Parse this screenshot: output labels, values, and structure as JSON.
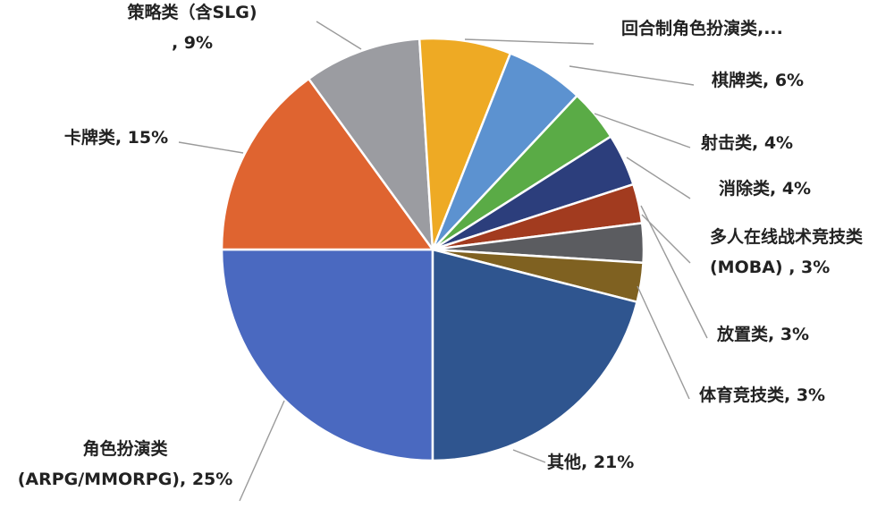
{
  "chart_data": {
    "type": "pie",
    "title": "",
    "slices": [
      {
        "key": "rpg",
        "label_lines": [
          "角色扮演类",
          "(ARPG/MMORPG), 25%"
        ],
        "value": 25,
        "color": "#4a69c0"
      },
      {
        "key": "card",
        "label_lines": [
          "卡牌类, 15%"
        ],
        "value": 15,
        "color": "#df6430"
      },
      {
        "key": "slg",
        "label_lines": [
          "策略类（含SLG)",
          ", 9%"
        ],
        "value": 9,
        "color": "#9b9ca1"
      },
      {
        "key": "turn",
        "label_lines": [
          "回合制角色扮演类,..."
        ],
        "value": 7,
        "color": "#eeaa24"
      },
      {
        "key": "chess",
        "label_lines": [
          "棋牌类, 6%"
        ],
        "value": 6,
        "color": "#5c92d0"
      },
      {
        "key": "shooter",
        "label_lines": [
          "射击类, 4%"
        ],
        "value": 4,
        "color": "#5aab46"
      },
      {
        "key": "match",
        "label_lines": [
          "消除类, 4%"
        ],
        "value": 4,
        "color": "#2c3e7c"
      },
      {
        "key": "idle",
        "label_lines": [
          "放置类, 3%"
        ],
        "value": 3,
        "color": "#a23b1f"
      },
      {
        "key": "moba",
        "label_lines": [
          "多人在线战术竞技类",
          "(MOBA) , 3%"
        ],
        "value": 3,
        "color": "#5b5c60"
      },
      {
        "key": "sports",
        "label_lines": [
          "体育竞技类, 3%"
        ],
        "value": 3,
        "color": "#7f6121"
      },
      {
        "key": "other",
        "label_lines": [
          "其他, 21%"
        ],
        "value": 21,
        "color": "#2f558f"
      }
    ]
  }
}
